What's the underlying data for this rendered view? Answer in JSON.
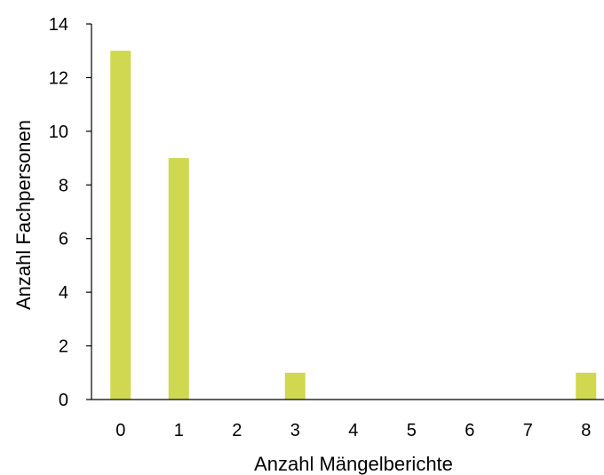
{
  "chart_data": {
    "type": "bar",
    "categories": [
      "0",
      "1",
      "2",
      "3",
      "4",
      "5",
      "6",
      "7",
      "8"
    ],
    "values": [
      13,
      9,
      0,
      1,
      0,
      0,
      0,
      0,
      1
    ],
    "yticks": [
      "0",
      "2",
      "4",
      "6",
      "8",
      "10",
      "12",
      "14"
    ],
    "ylim": [
      0,
      14
    ],
    "xlabel": "Anzahl Mängelberichte",
    "ylabel": "Anzahl Fachpersonen",
    "grid": false,
    "legend": false,
    "bar_color": "#cfd84f",
    "axis_color": "#000000"
  }
}
